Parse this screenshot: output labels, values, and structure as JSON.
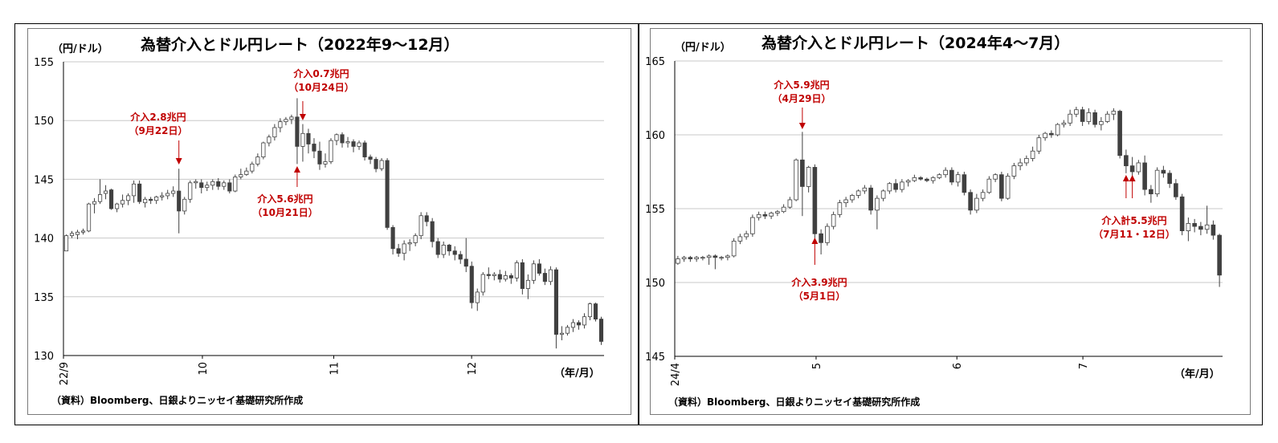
{
  "colors": {
    "up": "#ffffff",
    "down": "#404040",
    "wick": "#404040",
    "grid": "#c8c8c8",
    "annotation": "#c00000"
  },
  "chart_data": [
    {
      "type": "candlestick",
      "title": "為替介入とドル円レート（2022年9～12月）",
      "ylabel": "（円/ドル）",
      "xlabel": "（年/月）",
      "source": "（資料）Bloomberg、日銀よりニッセイ基礎研究所作成",
      "ylim": [
        130,
        155
      ],
      "yticks": [
        "130",
        "135",
        "140",
        "145",
        "150",
        "155"
      ],
      "xticks": [
        "22/9",
        "10",
        "11",
        "12"
      ],
      "annotations": [
        {
          "amount": "介入2.8兆円",
          "date": "（9月22日）",
          "index": 20,
          "dir": "down"
        },
        {
          "amount": "介入0.7兆円",
          "date": "（10月24日）",
          "index": 42,
          "dir": "down"
        },
        {
          "amount": "介入5.6兆円",
          "date": "（10月21日）",
          "index": 41,
          "dir": "up"
        }
      ],
      "candles": [
        [
          138.9,
          140.2,
          138.9,
          140.3
        ],
        [
          140.2,
          140.4,
          140.0,
          140.6
        ],
        [
          140.3,
          140.5,
          139.9,
          140.7
        ],
        [
          140.5,
          140.6,
          140.3,
          140.8
        ],
        [
          140.6,
          142.9,
          140.5,
          143.0
        ],
        [
          142.9,
          143.1,
          142.1,
          143.4
        ],
        [
          143.1,
          143.7,
          142.9,
          145.0
        ],
        [
          143.8,
          144.0,
          143.3,
          144.5
        ],
        [
          144.1,
          142.5,
          142.4,
          144.2
        ],
        [
          142.5,
          142.9,
          142.2,
          143.0
        ],
        [
          142.9,
          143.2,
          142.6,
          143.7
        ],
        [
          143.2,
          143.6,
          142.8,
          143.8
        ],
        [
          143.6,
          144.6,
          143.0,
          144.9
        ],
        [
          144.6,
          143.1,
          142.9,
          144.9
        ],
        [
          143.0,
          143.3,
          142.6,
          143.5
        ],
        [
          143.3,
          143.2,
          142.9,
          143.5
        ],
        [
          143.2,
          143.5,
          142.9,
          143.6
        ],
        [
          143.5,
          143.6,
          143.2,
          143.9
        ],
        [
          143.6,
          143.8,
          143.3,
          144.1
        ],
        [
          143.8,
          144.0,
          143.5,
          144.4
        ],
        [
          144.0,
          142.3,
          140.4,
          145.9
        ],
        [
          142.3,
          143.3,
          142.0,
          143.5
        ],
        [
          143.3,
          144.7,
          143.0,
          144.9
        ],
        [
          144.7,
          144.8,
          144.2,
          145.0
        ],
        [
          144.7,
          144.3,
          143.8,
          145.0
        ],
        [
          144.3,
          144.5,
          144.0,
          144.8
        ],
        [
          144.5,
          144.8,
          144.1,
          145.0
        ],
        [
          144.8,
          144.4,
          144.1,
          145.1
        ],
        [
          144.4,
          144.7,
          144.1,
          144.9
        ],
        [
          144.7,
          144.0,
          143.8,
          145.0
        ],
        [
          144.0,
          145.2,
          143.9,
          145.4
        ],
        [
          145.2,
          145.4,
          145.0,
          145.9
        ],
        [
          145.4,
          145.7,
          145.3,
          146.0
        ],
        [
          145.7,
          146.3,
          145.5,
          146.5
        ],
        [
          146.3,
          146.9,
          146.1,
          147.2
        ],
        [
          146.9,
          148.1,
          146.7,
          148.2
        ],
        [
          148.1,
          148.6,
          147.8,
          148.8
        ],
        [
          148.6,
          149.4,
          148.3,
          149.7
        ],
        [
          149.4,
          149.9,
          149.0,
          150.2
        ],
        [
          149.9,
          150.1,
          149.6,
          150.3
        ],
        [
          150.1,
          150.3,
          149.7,
          150.5
        ],
        [
          150.3,
          147.8,
          146.3,
          151.9
        ],
        [
          147.8,
          148.9,
          146.5,
          149.7
        ],
        [
          148.9,
          148.0,
          147.2,
          149.3
        ],
        [
          148.0,
          147.4,
          146.8,
          148.5
        ],
        [
          147.4,
          146.3,
          145.8,
          148.2
        ],
        [
          146.3,
          146.5,
          146.0,
          147.2
        ],
        [
          146.5,
          148.3,
          146.3,
          148.5
        ],
        [
          148.3,
          148.8,
          147.9,
          148.9
        ],
        [
          148.8,
          148.1,
          147.7,
          149.0
        ],
        [
          148.1,
          148.2,
          147.7,
          148.6
        ],
        [
          148.2,
          147.8,
          147.3,
          148.4
        ],
        [
          147.8,
          148.1,
          147.5,
          148.3
        ],
        [
          148.1,
          146.9,
          146.6,
          148.3
        ],
        [
          146.9,
          146.7,
          146.3,
          147.1
        ],
        [
          146.7,
          145.9,
          145.6,
          146.9
        ],
        [
          145.9,
          146.6,
          145.7,
          146.8
        ],
        [
          146.6,
          140.9,
          140.7,
          146.8
        ],
        [
          140.9,
          139.1,
          138.6,
          141.1
        ],
        [
          139.1,
          138.7,
          138.4,
          139.5
        ],
        [
          138.7,
          139.5,
          138.1,
          139.8
        ],
        [
          139.5,
          139.6,
          138.9,
          139.9
        ],
        [
          139.6,
          140.2,
          139.3,
          140.4
        ],
        [
          140.2,
          141.9,
          139.9,
          142.2
        ],
        [
          141.9,
          141.4,
          141.0,
          142.2
        ],
        [
          141.4,
          139.7,
          139.2,
          141.7
        ],
        [
          139.7,
          138.6,
          138.3,
          140.0
        ],
        [
          138.6,
          139.4,
          138.3,
          139.7
        ],
        [
          139.4,
          138.9,
          138.5,
          139.5
        ],
        [
          138.9,
          138.6,
          138.1,
          139.3
        ],
        [
          138.6,
          138.2,
          137.8,
          138.9
        ],
        [
          138.2,
          137.6,
          137.1,
          140.0
        ],
        [
          137.6,
          134.5,
          134.0,
          138.0
        ],
        [
          134.5,
          135.4,
          133.8,
          135.7
        ],
        [
          135.4,
          136.9,
          135.1,
          137.1
        ],
        [
          136.9,
          136.8,
          136.5,
          137.5
        ],
        [
          136.8,
          136.9,
          136.4,
          137.1
        ],
        [
          136.9,
          136.5,
          136.2,
          137.3
        ],
        [
          136.5,
          136.8,
          136.3,
          137.2
        ],
        [
          136.8,
          136.6,
          136.1,
          137.0
        ],
        [
          136.6,
          137.9,
          136.3,
          138.1
        ],
        [
          137.9,
          135.7,
          135.2,
          138.2
        ],
        [
          135.7,
          136.4,
          134.8,
          136.9
        ],
        [
          136.4,
          137.8,
          136.1,
          138.1
        ],
        [
          137.8,
          137.0,
          136.8,
          138.2
        ],
        [
          137.0,
          136.3,
          136.0,
          137.4
        ],
        [
          136.3,
          137.3,
          136.0,
          137.6
        ],
        [
          137.3,
          131.8,
          130.6,
          137.5
        ],
        [
          131.8,
          131.9,
          131.3,
          132.5
        ],
        [
          131.9,
          132.4,
          131.7,
          132.6
        ],
        [
          132.4,
          132.8,
          132.0,
          133.1
        ],
        [
          132.8,
          132.6,
          132.2,
          133.0
        ],
        [
          132.6,
          133.3,
          132.3,
          133.6
        ],
        [
          133.3,
          134.4,
          133.0,
          134.5
        ],
        [
          134.4,
          133.1,
          132.9,
          134.5
        ],
        [
          133.1,
          131.2,
          130.9,
          133.3
        ]
      ]
    },
    {
      "type": "candlestick",
      "title": "為替介入とドル円レート（2024年4～7月）",
      "ylabel": "（円/ドル）",
      "xlabel": "（年/月）",
      "source": "（資料）Bloomberg、日銀よりニッセイ基礎研究所作成",
      "ylim": [
        145,
        165
      ],
      "yticks": [
        "145",
        "150",
        "155",
        "160",
        "165"
      ],
      "xticks": [
        "24/4",
        "5",
        "6",
        "7"
      ],
      "annotations": [
        {
          "amount": "介入5.9兆円",
          "date": "（4月29日）",
          "index": 20,
          "dir": "down"
        },
        {
          "amount": "介入3.9兆円",
          "date": "（5月1日）",
          "index": 22,
          "dir": "up"
        },
        {
          "amount": "介入計5.5兆円",
          "date": "（7月11・12日）",
          "index": 72,
          "dir": "up",
          "index2": 73
        }
      ],
      "candles": [
        [
          151.3,
          151.6,
          151.2,
          151.8
        ],
        [
          151.6,
          151.7,
          151.4,
          151.8
        ],
        [
          151.7,
          151.6,
          151.4,
          151.8
        ],
        [
          151.6,
          151.7,
          151.4,
          151.8
        ],
        [
          151.7,
          151.7,
          151.5,
          151.8
        ],
        [
          151.7,
          151.8,
          151.2,
          151.9
        ],
        [
          151.8,
          151.7,
          150.9,
          151.9
        ],
        [
          151.7,
          151.7,
          151.5,
          151.8
        ],
        [
          151.7,
          151.8,
          151.5,
          151.9
        ],
        [
          151.8,
          152.8,
          151.7,
          153.0
        ],
        [
          152.8,
          153.1,
          152.6,
          153.3
        ],
        [
          153.1,
          153.3,
          152.9,
          153.5
        ],
        [
          153.3,
          154.4,
          153.1,
          154.6
        ],
        [
          154.4,
          154.6,
          154.2,
          154.8
        ],
        [
          154.6,
          154.5,
          154.3,
          154.8
        ],
        [
          154.5,
          154.7,
          154.3,
          154.8
        ],
        [
          154.7,
          154.8,
          154.5,
          154.9
        ],
        [
          154.8,
          155.1,
          154.7,
          155.3
        ],
        [
          155.1,
          155.6,
          155.0,
          155.8
        ],
        [
          155.6,
          158.3,
          155.5,
          158.4
        ],
        [
          158.3,
          156.5,
          154.5,
          160.2
        ],
        [
          156.5,
          157.8,
          156.1,
          157.9
        ],
        [
          157.8,
          153.3,
          153.0,
          158.0
        ],
        [
          153.3,
          152.7,
          151.9,
          153.6
        ],
        [
          152.7,
          153.8,
          152.5,
          154.0
        ],
        [
          153.8,
          154.6,
          153.6,
          154.8
        ],
        [
          154.6,
          155.4,
          154.4,
          155.6
        ],
        [
          155.4,
          155.6,
          155.1,
          155.8
        ],
        [
          155.6,
          155.9,
          155.4,
          156.0
        ],
        [
          155.9,
          156.2,
          155.7,
          156.3
        ],
        [
          156.2,
          156.4,
          156.0,
          156.6
        ],
        [
          156.4,
          154.9,
          154.6,
          156.6
        ],
        [
          154.9,
          155.7,
          153.6,
          155.9
        ],
        [
          155.7,
          156.2,
          155.5,
          156.3
        ],
        [
          156.2,
          156.7,
          156.0,
          156.8
        ],
        [
          156.7,
          156.3,
          156.1,
          157.0
        ],
        [
          156.3,
          156.8,
          156.1,
          157.0
        ],
        [
          156.8,
          156.9,
          156.5,
          157.0
        ],
        [
          156.9,
          157.1,
          156.8,
          157.3
        ],
        [
          157.1,
          157.0,
          156.9,
          157.2
        ],
        [
          157.0,
          156.9,
          156.8,
          157.1
        ],
        [
          156.9,
          157.1,
          156.7,
          157.2
        ],
        [
          157.1,
          157.3,
          157.0,
          157.4
        ],
        [
          157.3,
          157.6,
          157.1,
          157.8
        ],
        [
          157.6,
          156.8,
          156.6,
          157.8
        ],
        [
          156.8,
          157.3,
          156.5,
          157.5
        ],
        [
          157.3,
          156.1,
          155.9,
          157.5
        ],
        [
          156.1,
          154.9,
          154.6,
          156.3
        ],
        [
          154.9,
          155.7,
          154.7,
          156.0
        ],
        [
          155.7,
          156.1,
          155.5,
          156.3
        ],
        [
          156.1,
          157.0,
          156.0,
          157.2
        ],
        [
          157.0,
          157.3,
          156.8,
          157.4
        ],
        [
          157.3,
          155.7,
          155.5,
          157.5
        ],
        [
          155.7,
          157.2,
          155.6,
          157.4
        ],
        [
          157.2,
          157.9,
          157.0,
          158.1
        ],
        [
          157.9,
          158.1,
          157.6,
          158.4
        ],
        [
          158.1,
          158.4,
          157.9,
          158.6
        ],
        [
          158.4,
          158.9,
          158.2,
          159.2
        ],
        [
          158.9,
          159.8,
          158.7,
          160.0
        ],
        [
          159.8,
          160.1,
          159.6,
          160.2
        ],
        [
          160.1,
          160.0,
          159.8,
          160.3
        ],
        [
          160.0,
          160.7,
          159.9,
          160.8
        ],
        [
          160.7,
          160.8,
          160.5,
          161.0
        ],
        [
          160.8,
          161.4,
          160.6,
          161.7
        ],
        [
          161.4,
          161.7,
          161.2,
          161.9
        ],
        [
          161.7,
          160.9,
          160.6,
          161.9
        ],
        [
          160.9,
          161.5,
          160.7,
          161.8
        ],
        [
          161.5,
          160.7,
          160.5,
          161.7
        ],
        [
          160.7,
          160.9,
          160.3,
          161.2
        ],
        [
          160.9,
          161.4,
          160.8,
          161.6
        ],
        [
          161.4,
          161.6,
          161.0,
          161.8
        ],
        [
          161.6,
          158.6,
          158.4,
          161.7
        ],
        [
          158.6,
          157.9,
          157.4,
          159.0
        ],
        [
          157.9,
          157.5,
          157.2,
          158.5
        ],
        [
          157.5,
          158.1,
          157.3,
          158.3
        ],
        [
          158.1,
          156.3,
          155.9,
          158.6
        ],
        [
          156.3,
          156.0,
          155.4,
          156.6
        ],
        [
          156.0,
          157.6,
          155.8,
          157.8
        ],
        [
          157.6,
          157.4,
          157.1,
          157.9
        ],
        [
          157.4,
          156.7,
          156.4,
          157.6
        ],
        [
          156.7,
          155.8,
          155.6,
          157.0
        ],
        [
          155.8,
          153.5,
          153.2,
          156.0
        ],
        [
          153.5,
          154.0,
          152.8,
          154.4
        ],
        [
          154.0,
          153.8,
          153.4,
          154.3
        ],
        [
          153.8,
          153.6,
          153.2,
          154.1
        ],
        [
          153.6,
          153.9,
          153.3,
          155.2
        ],
        [
          153.9,
          153.2,
          152.9,
          154.2
        ],
        [
          153.2,
          150.5,
          149.7,
          153.3
        ]
      ]
    }
  ]
}
